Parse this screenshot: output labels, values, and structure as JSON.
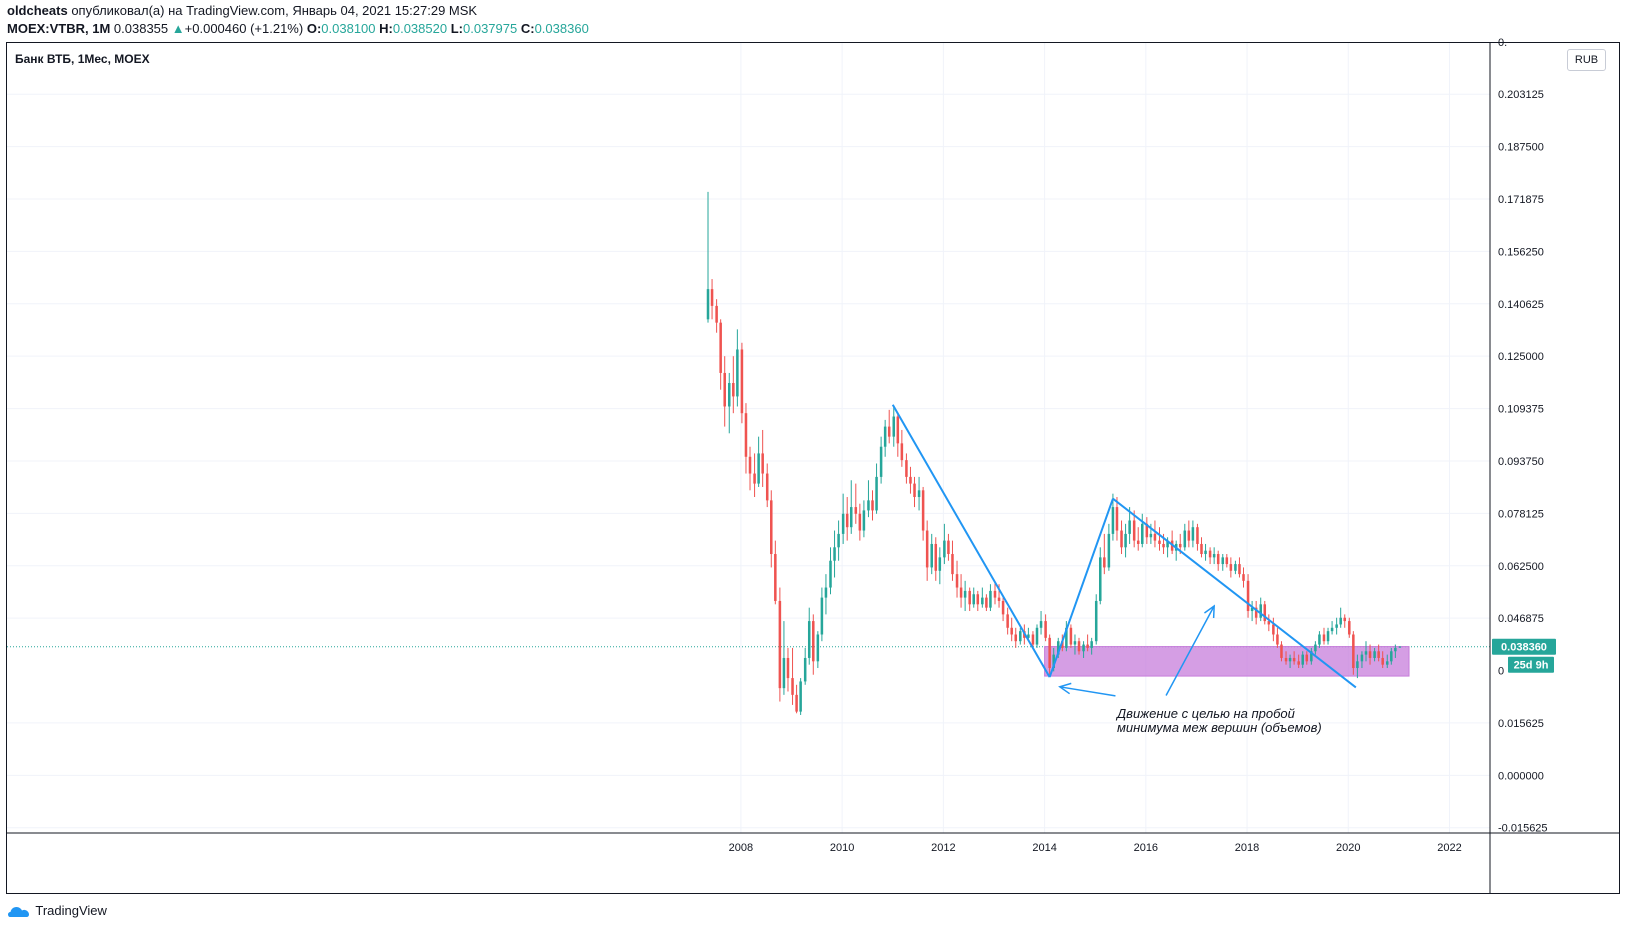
{
  "header": {
    "author": "oldcheats",
    "published_text": "опубликовал(а) на TradingView.com, Январь 04, 2021 15:27:29 MSK",
    "symbol": "MOEX:VTBR, 1M",
    "last": "0.038355",
    "change_arrow": "▲",
    "change": "+0.000460 (+1.21%)",
    "o_label": "O:",
    "o_value": "0.038100",
    "h_label": "H:",
    "h_value": "0.038520",
    "l_label": "L:",
    "l_value": "0.037975",
    "c_label": "C:",
    "c_value": "0.038360"
  },
  "chart_title": "Банк ВТБ, 1Мес, MOEX",
  "currency_button": "RUB",
  "footer": {
    "brand": "TradingView"
  },
  "colors": {
    "up": "#26a69a",
    "down": "#ef5350",
    "trend": "#2196f3",
    "box": "#c77ddb",
    "grid": "#f0f3fa",
    "price_line": "#26a69a"
  },
  "chart_data": {
    "type": "candlestick",
    "title": "Банк ВТБ, 1Мес, MOEX",
    "x_ticks": [
      "2008",
      "2010",
      "2012",
      "2014",
      "2016",
      "2018",
      "2020",
      "2022"
    ],
    "y_ticks": [
      "0.203125",
      "0.187500",
      "0.171875",
      "0.156250",
      "0.140625",
      "0.125000",
      "0.109375",
      "0.093750",
      "0.078125",
      "0.062500",
      "0.046875",
      "0.015625",
      "0.000000",
      "-0.015625"
    ],
    "y_tick_partial_top": "0.",
    "y_tick_partial_low": "0",
    "ylim": [
      -0.0172,
      0.2184
    ],
    "xlim": [
      1993.5,
      2022.8
    ],
    "last_price_label": "0.038360",
    "countdown_label": "25d 9h",
    "last_price": 0.03836,
    "annotation": "Движение с целью на пробой минимума меж вершин (объемов)",
    "annotation_lines": [
      "Движение с целью на пробой",
      "минимума меж вершин (объемов)"
    ],
    "highlight_zone": {
      "x0": 2014.0,
      "x1": 2021.2,
      "y_low": 0.0296,
      "y_high": 0.0384
    },
    "trend_lines": [
      [
        [
          2011.0,
          0.1105
        ],
        [
          2014.1,
          0.0293
        ]
      ],
      [
        [
          2014.1,
          0.0293
        ],
        [
          2015.35,
          0.0825
        ]
      ],
      [
        [
          2015.35,
          0.0825
        ],
        [
          2020.15,
          0.0262
        ]
      ]
    ],
    "arrows": [
      {
        "from": [
          2015.4,
          0.0237
        ],
        "to": [
          2014.3,
          0.0264
        ]
      },
      {
        "from": [
          2016.4,
          0.0238
        ],
        "to": [
          2017.35,
          0.0505
        ]
      }
    ],
    "candles": [
      [
        2007.35,
        0.136,
        0.174,
        0.135,
        0.145
      ],
      [
        2007.43,
        0.145,
        0.148,
        0.136,
        0.14
      ],
      [
        2007.52,
        0.14,
        0.142,
        0.132,
        0.135
      ],
      [
        2007.6,
        0.135,
        0.136,
        0.115,
        0.12
      ],
      [
        2007.68,
        0.12,
        0.125,
        0.104,
        0.11
      ],
      [
        2007.77,
        0.11,
        0.12,
        0.102,
        0.117
      ],
      [
        2007.85,
        0.117,
        0.125,
        0.108,
        0.113
      ],
      [
        2007.93,
        0.113,
        0.133,
        0.11,
        0.127
      ],
      [
        2008.02,
        0.127,
        0.129,
        0.105,
        0.108
      ],
      [
        2008.1,
        0.108,
        0.111,
        0.09,
        0.095
      ],
      [
        2008.18,
        0.095,
        0.098,
        0.085,
        0.09
      ],
      [
        2008.27,
        0.09,
        0.096,
        0.083,
        0.087
      ],
      [
        2008.35,
        0.087,
        0.101,
        0.086,
        0.096
      ],
      [
        2008.43,
        0.096,
        0.103,
        0.086,
        0.09
      ],
      [
        2008.52,
        0.09,
        0.093,
        0.08,
        0.082
      ],
      [
        2008.6,
        0.082,
        0.085,
        0.062,
        0.066
      ],
      [
        2008.68,
        0.066,
        0.07,
        0.051,
        0.052
      ],
      [
        2008.77,
        0.052,
        0.056,
        0.022,
        0.026
      ],
      [
        2008.85,
        0.026,
        0.046,
        0.024,
        0.035
      ],
      [
        2008.93,
        0.035,
        0.038,
        0.025,
        0.029
      ],
      [
        2009.02,
        0.029,
        0.038,
        0.021,
        0.024
      ],
      [
        2009.1,
        0.024,
        0.027,
        0.0185,
        0.019
      ],
      [
        2009.18,
        0.019,
        0.029,
        0.018,
        0.028
      ],
      [
        2009.27,
        0.028,
        0.038,
        0.027,
        0.035
      ],
      [
        2009.35,
        0.035,
        0.05,
        0.033,
        0.046
      ],
      [
        2009.43,
        0.046,
        0.048,
        0.03,
        0.034
      ],
      [
        2009.52,
        0.034,
        0.043,
        0.032,
        0.042
      ],
      [
        2009.6,
        0.042,
        0.056,
        0.04,
        0.053
      ],
      [
        2009.68,
        0.053,
        0.06,
        0.048,
        0.056
      ],
      [
        2009.77,
        0.056,
        0.068,
        0.054,
        0.064
      ],
      [
        2009.85,
        0.064,
        0.073,
        0.059,
        0.068
      ],
      [
        2009.93,
        0.068,
        0.076,
        0.064,
        0.072
      ],
      [
        2010.02,
        0.072,
        0.084,
        0.069,
        0.078
      ],
      [
        2010.1,
        0.078,
        0.083,
        0.07,
        0.074
      ],
      [
        2010.18,
        0.074,
        0.088,
        0.072,
        0.08
      ],
      [
        2010.27,
        0.08,
        0.087,
        0.075,
        0.078
      ],
      [
        2010.35,
        0.078,
        0.081,
        0.07,
        0.073
      ],
      [
        2010.43,
        0.073,
        0.082,
        0.071,
        0.079
      ],
      [
        2010.52,
        0.079,
        0.088,
        0.077,
        0.082
      ],
      [
        2010.6,
        0.082,
        0.085,
        0.076,
        0.079
      ],
      [
        2010.68,
        0.079,
        0.093,
        0.078,
        0.089
      ],
      [
        2010.77,
        0.089,
        0.101,
        0.087,
        0.098
      ],
      [
        2010.85,
        0.098,
        0.106,
        0.095,
        0.104
      ],
      [
        2010.93,
        0.104,
        0.109,
        0.099,
        0.101
      ],
      [
        2011.02,
        0.101,
        0.11,
        0.098,
        0.107
      ],
      [
        2011.1,
        0.107,
        0.108,
        0.095,
        0.099
      ],
      [
        2011.18,
        0.099,
        0.103,
        0.092,
        0.094
      ],
      [
        2011.27,
        0.094,
        0.096,
        0.087,
        0.089
      ],
      [
        2011.35,
        0.089,
        0.092,
        0.084,
        0.087
      ],
      [
        2011.43,
        0.087,
        0.089,
        0.08,
        0.083
      ],
      [
        2011.52,
        0.083,
        0.089,
        0.079,
        0.085
      ],
      [
        2011.6,
        0.085,
        0.086,
        0.07,
        0.073
      ],
      [
        2011.68,
        0.073,
        0.076,
        0.058,
        0.062
      ],
      [
        2011.77,
        0.062,
        0.072,
        0.06,
        0.069
      ],
      [
        2011.85,
        0.069,
        0.071,
        0.058,
        0.061
      ],
      [
        2011.93,
        0.061,
        0.068,
        0.057,
        0.065
      ],
      [
        2012.02,
        0.065,
        0.075,
        0.063,
        0.07
      ],
      [
        2012.1,
        0.07,
        0.072,
        0.064,
        0.066
      ],
      [
        2012.18,
        0.066,
        0.07,
        0.058,
        0.06
      ],
      [
        2012.27,
        0.06,
        0.064,
        0.053,
        0.056
      ],
      [
        2012.35,
        0.056,
        0.06,
        0.05,
        0.053
      ],
      [
        2012.43,
        0.053,
        0.058,
        0.049,
        0.055
      ],
      [
        2012.52,
        0.055,
        0.056,
        0.049,
        0.051
      ],
      [
        2012.6,
        0.051,
        0.056,
        0.05,
        0.054
      ],
      [
        2012.68,
        0.054,
        0.055,
        0.049,
        0.051
      ],
      [
        2012.77,
        0.051,
        0.056,
        0.05,
        0.053
      ],
      [
        2012.85,
        0.053,
        0.054,
        0.049,
        0.05
      ],
      [
        2012.93,
        0.05,
        0.057,
        0.049,
        0.055
      ],
      [
        2013.02,
        0.055,
        0.058,
        0.051,
        0.053
      ],
      [
        2013.1,
        0.053,
        0.057,
        0.05,
        0.052
      ],
      [
        2013.18,
        0.052,
        0.053,
        0.046,
        0.048
      ],
      [
        2013.27,
        0.048,
        0.05,
        0.042,
        0.044
      ],
      [
        2013.35,
        0.044,
        0.047,
        0.04,
        0.042
      ],
      [
        2013.43,
        0.042,
        0.044,
        0.038,
        0.04
      ],
      [
        2013.52,
        0.04,
        0.044,
        0.039,
        0.043
      ],
      [
        2013.6,
        0.043,
        0.045,
        0.039,
        0.041
      ],
      [
        2013.68,
        0.041,
        0.044,
        0.04,
        0.042
      ],
      [
        2013.77,
        0.042,
        0.043,
        0.038,
        0.039
      ],
      [
        2013.85,
        0.039,
        0.045,
        0.038,
        0.044
      ],
      [
        2013.93,
        0.044,
        0.049,
        0.042,
        0.046
      ],
      [
        2014.02,
        0.046,
        0.048,
        0.04,
        0.041
      ],
      [
        2014.1,
        0.041,
        0.042,
        0.03,
        0.032
      ],
      [
        2014.18,
        0.032,
        0.038,
        0.031,
        0.036
      ],
      [
        2014.27,
        0.036,
        0.041,
        0.035,
        0.04
      ],
      [
        2014.35,
        0.04,
        0.042,
        0.037,
        0.038
      ],
      [
        2014.43,
        0.038,
        0.046,
        0.037,
        0.044
      ],
      [
        2014.52,
        0.044,
        0.045,
        0.038,
        0.039
      ],
      [
        2014.6,
        0.039,
        0.042,
        0.036,
        0.04
      ],
      [
        2014.68,
        0.04,
        0.041,
        0.036,
        0.037
      ],
      [
        2014.77,
        0.037,
        0.04,
        0.035,
        0.039
      ],
      [
        2014.85,
        0.039,
        0.042,
        0.037,
        0.038
      ],
      [
        2014.93,
        0.038,
        0.041,
        0.036,
        0.04
      ],
      [
        2015.02,
        0.04,
        0.054,
        0.039,
        0.052
      ],
      [
        2015.1,
        0.052,
        0.068,
        0.051,
        0.065
      ],
      [
        2015.18,
        0.065,
        0.072,
        0.06,
        0.062
      ],
      [
        2015.27,
        0.062,
        0.075,
        0.061,
        0.072
      ],
      [
        2015.35,
        0.072,
        0.084,
        0.07,
        0.08
      ],
      [
        2015.43,
        0.08,
        0.083,
        0.07,
        0.073
      ],
      [
        2015.52,
        0.073,
        0.076,
        0.066,
        0.068
      ],
      [
        2015.6,
        0.068,
        0.075,
        0.065,
        0.072
      ],
      [
        2015.68,
        0.072,
        0.08,
        0.069,
        0.076
      ],
      [
        2015.77,
        0.076,
        0.079,
        0.068,
        0.07
      ],
      [
        2015.85,
        0.07,
        0.074,
        0.067,
        0.069
      ],
      [
        2015.93,
        0.069,
        0.078,
        0.068,
        0.075
      ],
      [
        2016.02,
        0.075,
        0.077,
        0.069,
        0.071
      ],
      [
        2016.1,
        0.071,
        0.075,
        0.069,
        0.072
      ],
      [
        2016.18,
        0.072,
        0.076,
        0.068,
        0.07
      ],
      [
        2016.27,
        0.07,
        0.074,
        0.067,
        0.069
      ],
      [
        2016.35,
        0.069,
        0.072,
        0.066,
        0.068
      ],
      [
        2016.43,
        0.068,
        0.071,
        0.065,
        0.07
      ],
      [
        2016.52,
        0.07,
        0.073,
        0.066,
        0.067
      ],
      [
        2016.6,
        0.067,
        0.07,
        0.064,
        0.069
      ],
      [
        2016.68,
        0.069,
        0.072,
        0.066,
        0.068
      ],
      [
        2016.77,
        0.068,
        0.075,
        0.067,
        0.073
      ],
      [
        2016.85,
        0.073,
        0.076,
        0.068,
        0.07
      ],
      [
        2016.93,
        0.07,
        0.076,
        0.068,
        0.074
      ],
      [
        2017.02,
        0.074,
        0.075,
        0.067,
        0.069
      ],
      [
        2017.1,
        0.069,
        0.071,
        0.065,
        0.066
      ],
      [
        2017.18,
        0.066,
        0.069,
        0.064,
        0.067
      ],
      [
        2017.27,
        0.067,
        0.068,
        0.063,
        0.065
      ],
      [
        2017.35,
        0.065,
        0.068,
        0.063,
        0.066
      ],
      [
        2017.43,
        0.066,
        0.067,
        0.061,
        0.063
      ],
      [
        2017.52,
        0.063,
        0.066,
        0.061,
        0.065
      ],
      [
        2017.6,
        0.065,
        0.066,
        0.062,
        0.063
      ],
      [
        2017.68,
        0.063,
        0.065,
        0.059,
        0.061
      ],
      [
        2017.77,
        0.061,
        0.064,
        0.06,
        0.063
      ],
      [
        2017.85,
        0.063,
        0.065,
        0.059,
        0.06
      ],
      [
        2017.93,
        0.06,
        0.062,
        0.056,
        0.058
      ],
      [
        2018.02,
        0.058,
        0.06,
        0.047,
        0.049
      ],
      [
        2018.1,
        0.049,
        0.052,
        0.046,
        0.05
      ],
      [
        2018.18,
        0.05,
        0.052,
        0.045,
        0.047
      ],
      [
        2018.27,
        0.047,
        0.053,
        0.046,
        0.051
      ],
      [
        2018.35,
        0.051,
        0.052,
        0.045,
        0.046
      ],
      [
        2018.43,
        0.046,
        0.048,
        0.043,
        0.045
      ],
      [
        2018.52,
        0.045,
        0.047,
        0.04,
        0.042
      ],
      [
        2018.6,
        0.042,
        0.044,
        0.038,
        0.039
      ],
      [
        2018.68,
        0.039,
        0.04,
        0.034,
        0.035
      ],
      [
        2018.77,
        0.035,
        0.037,
        0.033,
        0.034
      ],
      [
        2018.85,
        0.034,
        0.036,
        0.032,
        0.035
      ],
      [
        2018.93,
        0.035,
        0.037,
        0.033,
        0.034
      ],
      [
        2019.02,
        0.034,
        0.036,
        0.032,
        0.033
      ],
      [
        2019.1,
        0.033,
        0.037,
        0.032,
        0.036
      ],
      [
        2019.18,
        0.036,
        0.037,
        0.033,
        0.034
      ],
      [
        2019.27,
        0.034,
        0.038,
        0.033,
        0.037
      ],
      [
        2019.35,
        0.037,
        0.04,
        0.036,
        0.039
      ],
      [
        2019.43,
        0.039,
        0.043,
        0.038,
        0.042
      ],
      [
        2019.52,
        0.042,
        0.044,
        0.039,
        0.04
      ],
      [
        2019.6,
        0.04,
        0.044,
        0.039,
        0.043
      ],
      [
        2019.68,
        0.043,
        0.046,
        0.042,
        0.044
      ],
      [
        2019.77,
        0.044,
        0.047,
        0.042,
        0.045
      ],
      [
        2019.85,
        0.045,
        0.05,
        0.044,
        0.047
      ],
      [
        2019.93,
        0.047,
        0.048,
        0.044,
        0.046
      ],
      [
        2020.02,
        0.046,
        0.047,
        0.041,
        0.042
      ],
      [
        2020.1,
        0.042,
        0.043,
        0.03,
        0.032
      ],
      [
        2020.18,
        0.032,
        0.036,
        0.029,
        0.034
      ],
      [
        2020.27,
        0.034,
        0.037,
        0.032,
        0.036
      ],
      [
        2020.35,
        0.036,
        0.04,
        0.034,
        0.037
      ],
      [
        2020.43,
        0.037,
        0.039,
        0.033,
        0.035
      ],
      [
        2020.52,
        0.035,
        0.038,
        0.034,
        0.037
      ],
      [
        2020.6,
        0.037,
        0.039,
        0.034,
        0.035
      ],
      [
        2020.68,
        0.035,
        0.037,
        0.032,
        0.033
      ],
      [
        2020.77,
        0.033,
        0.036,
        0.032,
        0.034
      ],
      [
        2020.85,
        0.034,
        0.038,
        0.033,
        0.037
      ],
      [
        2020.93,
        0.037,
        0.039,
        0.035,
        0.038
      ],
      [
        2021.02,
        0.0381,
        0.0385,
        0.038,
        0.0384
      ]
    ]
  }
}
